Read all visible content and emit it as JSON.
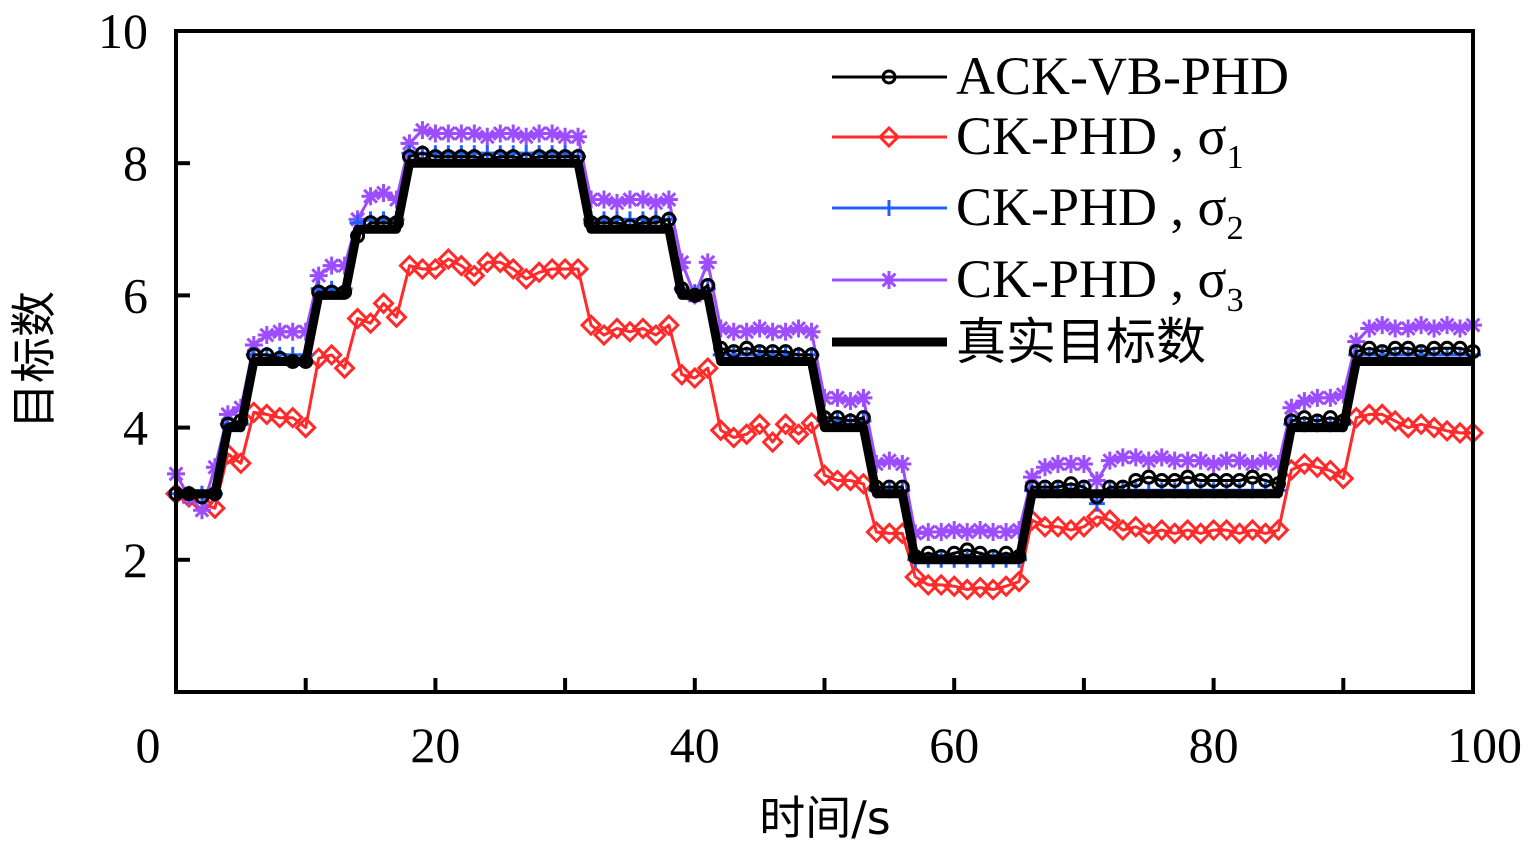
{
  "chart_data": {
    "type": "line",
    "title": "",
    "xlabel": "时间/s",
    "ylabel": "目标数",
    "xlim": [
      0,
      100
    ],
    "ylim": [
      0,
      10
    ],
    "xticks": [
      0,
      20,
      40,
      60,
      80,
      100
    ],
    "xtick_labels": [
      "0",
      "20",
      "40",
      "60",
      "80",
      "100"
    ],
    "x_minor_ticks": [
      10,
      30,
      50,
      70,
      90
    ],
    "yticks": [
      2,
      4,
      6,
      8,
      10
    ],
    "ytick_labels": [
      "2",
      "4",
      "6",
      "8",
      "10"
    ],
    "grid": false,
    "legend_position": "top-right",
    "x": [
      0,
      1,
      2,
      3,
      4,
      5,
      6,
      7,
      8,
      9,
      10,
      11,
      12,
      13,
      14,
      15,
      16,
      17,
      18,
      19,
      20,
      21,
      22,
      23,
      24,
      25,
      26,
      27,
      28,
      29,
      30,
      31,
      32,
      33,
      34,
      35,
      36,
      37,
      38,
      39,
      40,
      41,
      42,
      43,
      44,
      45,
      46,
      47,
      48,
      49,
      50,
      51,
      52,
      53,
      54,
      55,
      56,
      57,
      58,
      59,
      60,
      61,
      62,
      63,
      64,
      65,
      66,
      67,
      68,
      69,
      70,
      71,
      72,
      73,
      74,
      75,
      76,
      77,
      78,
      79,
      80,
      81,
      82,
      83,
      84,
      85,
      86,
      87,
      88,
      89,
      90,
      91,
      92,
      93,
      94,
      95,
      96,
      97,
      98,
      99,
      100
    ],
    "series": [
      {
        "name": "ACK-VB-PHD",
        "color": "#000000",
        "marker": "circle",
        "values": [
          3.0,
          3.0,
          2.95,
          3.0,
          4.05,
          4.1,
          5.1,
          5.1,
          5.05,
          5.0,
          5.0,
          6.05,
          6.05,
          6.05,
          6.9,
          7.1,
          7.1,
          7.1,
          8.1,
          8.15,
          8.1,
          8.1,
          8.1,
          8.1,
          8.05,
          8.1,
          8.1,
          8.05,
          8.1,
          8.1,
          8.1,
          8.1,
          7.1,
          7.1,
          7.1,
          7.05,
          7.1,
          7.1,
          7.15,
          6.1,
          6.0,
          6.15,
          5.2,
          5.15,
          5.2,
          5.15,
          5.15,
          5.15,
          5.1,
          5.1,
          4.15,
          4.15,
          4.1,
          4.15,
          3.1,
          3.1,
          3.1,
          2.05,
          2.1,
          2.05,
          2.1,
          2.15,
          2.1,
          2.05,
          2.1,
          2.05,
          3.1,
          3.1,
          3.1,
          3.15,
          3.1,
          2.95,
          3.1,
          3.1,
          3.2,
          3.25,
          3.2,
          3.2,
          3.25,
          3.2,
          3.2,
          3.2,
          3.2,
          3.25,
          3.2,
          3.15,
          4.1,
          4.15,
          4.1,
          4.15,
          4.1,
          5.15,
          5.2,
          5.15,
          5.2,
          5.2,
          5.15,
          5.2,
          5.2,
          5.2,
          5.15
        ]
      },
      {
        "name": "CK-PHD , σ1",
        "color": "#ff2a2a",
        "marker": "diamond",
        "values": [
          3.0,
          2.95,
          2.85,
          2.78,
          3.6,
          3.46,
          4.23,
          4.2,
          4.15,
          4.15,
          4.0,
          5.05,
          5.1,
          4.9,
          5.65,
          5.58,
          5.88,
          5.67,
          6.45,
          6.4,
          6.4,
          6.55,
          6.45,
          6.3,
          6.5,
          6.5,
          6.4,
          6.25,
          6.35,
          6.4,
          6.4,
          6.4,
          5.55,
          5.4,
          5.5,
          5.45,
          5.5,
          5.4,
          5.55,
          4.8,
          4.75,
          4.9,
          3.96,
          3.85,
          3.9,
          4.05,
          3.78,
          4.05,
          3.9,
          4.07,
          3.28,
          3.2,
          3.2,
          3.15,
          2.42,
          2.4,
          2.4,
          1.74,
          1.62,
          1.62,
          1.6,
          1.55,
          1.58,
          1.55,
          1.6,
          1.67,
          2.6,
          2.5,
          2.5,
          2.45,
          2.5,
          2.65,
          2.6,
          2.45,
          2.5,
          2.4,
          2.45,
          2.4,
          2.45,
          2.4,
          2.45,
          2.45,
          2.4,
          2.45,
          2.4,
          2.45,
          3.36,
          3.45,
          3.4,
          3.35,
          3.23,
          4.15,
          4.2,
          4.2,
          4.1,
          4.0,
          4.05,
          4.0,
          3.95,
          3.92,
          3.92
        ]
      },
      {
        "name": "CK-PHD , σ2",
        "color": "#1f5fff",
        "marker": "plus",
        "values": [
          3.0,
          3.0,
          3.0,
          3.0,
          4.05,
          4.05,
          5.1,
          5.1,
          5.1,
          5.1,
          5.1,
          6.1,
          6.1,
          6.1,
          7.1,
          7.15,
          7.15,
          7.15,
          8.15,
          8.15,
          8.15,
          8.15,
          8.15,
          8.15,
          8.15,
          8.15,
          8.15,
          8.15,
          8.15,
          8.15,
          8.15,
          8.1,
          7.15,
          7.15,
          7.15,
          7.15,
          7.15,
          7.15,
          7.15,
          6.1,
          6.05,
          6.1,
          5.1,
          5.1,
          5.1,
          5.1,
          5.1,
          5.1,
          5.1,
          5.1,
          4.1,
          4.1,
          4.1,
          4.1,
          3.05,
          3.05,
          3.05,
          2.0,
          2.0,
          2.0,
          2.0,
          2.0,
          2.0,
          2.0,
          2.0,
          2.0,
          3.05,
          3.05,
          3.05,
          3.05,
          3.05,
          2.85,
          3.05,
          3.05,
          3.05,
          3.05,
          3.05,
          3.05,
          3.05,
          3.05,
          3.05,
          3.05,
          3.05,
          3.05,
          3.05,
          3.05,
          4.05,
          4.05,
          4.05,
          4.05,
          4.05,
          5.1,
          5.1,
          5.1,
          5.1,
          5.1,
          5.1,
          5.1,
          5.1,
          5.1,
          5.1
        ]
      },
      {
        "name": "CK-PHD , σ3",
        "color": "#9b4dff",
        "marker": "asterisk",
        "values": [
          3.3,
          2.95,
          2.75,
          3.4,
          4.2,
          4.3,
          5.25,
          5.4,
          5.45,
          5.45,
          5.45,
          6.3,
          6.45,
          6.45,
          7.15,
          7.5,
          7.55,
          7.45,
          8.3,
          8.5,
          8.45,
          8.45,
          8.45,
          8.45,
          8.4,
          8.45,
          8.45,
          8.4,
          8.45,
          8.45,
          8.4,
          8.4,
          7.45,
          7.45,
          7.4,
          7.45,
          7.45,
          7.4,
          7.45,
          6.5,
          6.0,
          6.5,
          5.5,
          5.45,
          5.45,
          5.5,
          5.45,
          5.45,
          5.5,
          5.45,
          4.45,
          4.45,
          4.4,
          4.45,
          3.45,
          3.5,
          3.45,
          2.4,
          2.42,
          2.42,
          2.45,
          2.42,
          2.45,
          2.42,
          2.42,
          2.45,
          3.25,
          3.4,
          3.45,
          3.45,
          3.45,
          3.2,
          3.5,
          3.55,
          3.55,
          3.5,
          3.55,
          3.5,
          3.5,
          3.5,
          3.45,
          3.5,
          3.5,
          3.45,
          3.5,
          3.45,
          4.3,
          4.4,
          4.45,
          4.45,
          4.5,
          5.3,
          5.5,
          5.55,
          5.5,
          5.5,
          5.55,
          5.5,
          5.55,
          5.5,
          5.55
        ]
      },
      {
        "name": "真实目标数",
        "color": "#000000",
        "marker": "none",
        "values": [
          3,
          3,
          3,
          3,
          4,
          4,
          5,
          5,
          5,
          5,
          5,
          6,
          6,
          6,
          7,
          7,
          7,
          7,
          8,
          8,
          8,
          8,
          8,
          8,
          8,
          8,
          8,
          8,
          8,
          8,
          8,
          8,
          7,
          7,
          7,
          7,
          7,
          7,
          7,
          6,
          6,
          6,
          5,
          5,
          5,
          5,
          5,
          5,
          5,
          5,
          4,
          4,
          4,
          4,
          3,
          3,
          3,
          2,
          2,
          2,
          2,
          2,
          2,
          2,
          2,
          2,
          3,
          3,
          3,
          3,
          3,
          3,
          3,
          3,
          3,
          3,
          3,
          3,
          3,
          3,
          3,
          3,
          3,
          3,
          3,
          3,
          4,
          4,
          4,
          4,
          4,
          5,
          5,
          5,
          5,
          5,
          5,
          5,
          5,
          5,
          5
        ]
      }
    ],
    "legend": [
      {
        "label": "ACK-VB-PHD",
        "sub": ""
      },
      {
        "label": "CK-PHD , σ",
        "sub": "1"
      },
      {
        "label": "CK-PHD , σ",
        "sub": "2"
      },
      {
        "label": "CK-PHD , σ",
        "sub": "3"
      },
      {
        "label": "真实目标数",
        "sub": ""
      }
    ]
  }
}
